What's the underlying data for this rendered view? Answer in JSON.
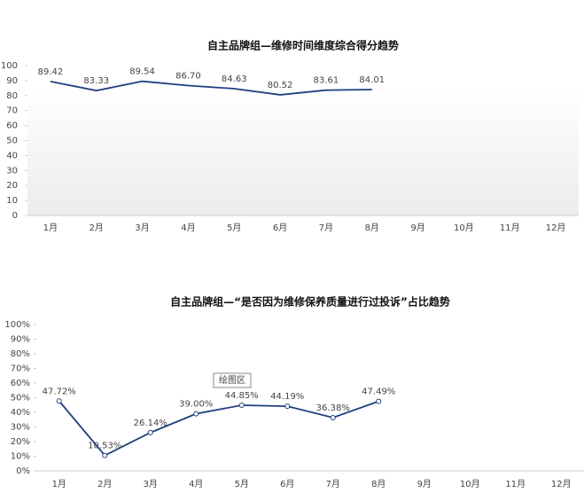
{
  "chart_data": [
    {
      "type": "line",
      "title": "自主品牌组—维修时间维度综合得分趋势",
      "categories": [
        "1月",
        "2月",
        "3月",
        "4月",
        "5月",
        "6月",
        "7月",
        "8月",
        "9月",
        "10月",
        "11月",
        "12月"
      ],
      "series": [
        {
          "color": "#1f3f80",
          "values": [
            89.42,
            83.33,
            89.54,
            86.7,
            84.63,
            80.52,
            83.61,
            84.01,
            null,
            null,
            null,
            null
          ],
          "value_labels": [
            "89.42",
            "83.33",
            "89.54",
            "86.70",
            "84.63",
            "80.52",
            "83.61",
            "84.01",
            null,
            null,
            null,
            null
          ]
        }
      ],
      "ylim": [
        0,
        100
      ],
      "yticks": [
        0,
        10,
        20,
        30,
        40,
        50,
        60,
        70,
        80,
        90,
        100
      ],
      "markers": false
    },
    {
      "type": "line",
      "title": "自主品牌组—“是否因为维修保养质量进行过投诉”占比趋势",
      "annotation": "绘图区",
      "categories": [
        "1月",
        "2月",
        "3月",
        "4月",
        "5月",
        "6月",
        "7月",
        "8月",
        "9月",
        "10月",
        "11月",
        "12月"
      ],
      "series": [
        {
          "color": "#1f3f80",
          "values": [
            47.72,
            10.53,
            26.14,
            39.0,
            44.85,
            44.19,
            36.38,
            47.49,
            null,
            null,
            null,
            null
          ],
          "value_labels": [
            "47.72%",
            "10.53%",
            "26.14%",
            "39.00%",
            "44.85%",
            "44.19%",
            "36.38%",
            "47.49%",
            null,
            null,
            null,
            null
          ]
        }
      ],
      "ylim": [
        0,
        100
      ],
      "yticks": [
        {
          "value": 0,
          "label": "0%"
        },
        {
          "value": 10,
          "label": "10%"
        },
        {
          "value": 20,
          "label": "20%"
        },
        {
          "value": 30,
          "label": "30%"
        },
        {
          "value": 40,
          "label": "40%"
        },
        {
          "value": 50,
          "label": "50%"
        },
        {
          "value": 60,
          "label": "60%"
        },
        {
          "value": 70,
          "label": "70%"
        },
        {
          "value": 80,
          "label": "80%"
        },
        {
          "value": 90,
          "label": "90%"
        },
        {
          "value": 100,
          "label": "100%"
        }
      ],
      "markers": true
    }
  ]
}
